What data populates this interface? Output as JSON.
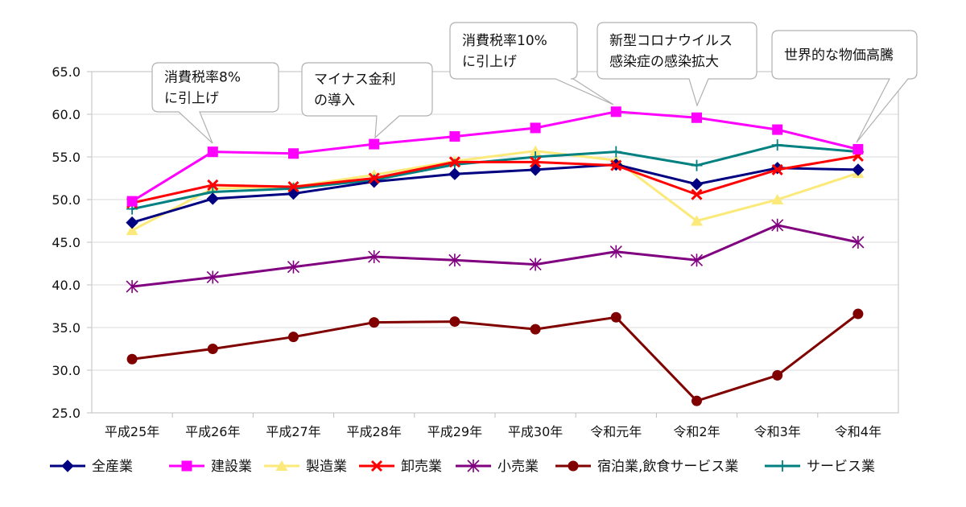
{
  "chart_data": {
    "type": "line",
    "title": "",
    "xlabel": "",
    "ylabel": "",
    "ylim": [
      25.0,
      65.0
    ],
    "ytick_step": 5,
    "grid": true,
    "legend_position": "bottom",
    "categories": [
      "平成25年",
      "平成26年",
      "平成27年",
      "平成28年",
      "平成29年",
      "平成30年",
      "令和元年",
      "令和2年",
      "令和3年",
      "令和4年"
    ],
    "series": [
      {
        "name": "全産業",
        "color": "#000080",
        "marker": "diamond",
        "values": [
          47.3,
          50.1,
          50.7,
          52.1,
          53.0,
          53.5,
          54.1,
          51.8,
          53.7,
          53.5
        ]
      },
      {
        "name": "建設業",
        "color": "#ff00ff",
        "marker": "square",
        "values": [
          49.8,
          55.6,
          55.4,
          56.5,
          57.4,
          58.4,
          60.3,
          59.6,
          58.2,
          55.9
        ]
      },
      {
        "name": "製造業",
        "color": "#fbe97a",
        "marker": "triangle",
        "values": [
          46.4,
          51.3,
          51.5,
          52.9,
          54.5,
          55.7,
          54.6,
          47.5,
          50.0,
          53.1
        ]
      },
      {
        "name": "卸売業",
        "color": "#ff0000",
        "marker": "x",
        "values": [
          49.6,
          51.7,
          51.5,
          52.5,
          54.4,
          54.4,
          54.0,
          50.6,
          53.5,
          55.1
        ]
      },
      {
        "name": "小売業",
        "color": "#800080",
        "marker": "star",
        "values": [
          39.8,
          40.9,
          42.1,
          43.3,
          42.9,
          42.4,
          43.9,
          42.9,
          47.0,
          45.0
        ]
      },
      {
        "name": "宿泊業,飲食サービス業",
        "color": "#800000",
        "marker": "circle",
        "values": [
          31.3,
          32.5,
          33.9,
          35.6,
          35.7,
          34.8,
          36.2,
          26.4,
          29.4,
          36.6
        ]
      },
      {
        "name": "サービス業",
        "color": "#008080",
        "marker": "plus",
        "values": [
          48.9,
          50.9,
          51.3,
          52.3,
          54.1,
          55.0,
          55.6,
          54.0,
          56.4,
          55.6
        ]
      }
    ],
    "annotations": [
      {
        "lines": [
          "消費税率8%",
          "に引上げ"
        ],
        "category": "平成26年",
        "value": 55.6
      },
      {
        "lines": [
          "マイナス金利",
          "の導入"
        ],
        "category": "平成28年",
        "value": 56.5
      },
      {
        "lines": [
          "消費税率10%",
          "に引上げ"
        ],
        "category": "令和元年",
        "value": 60.3
      },
      {
        "lines": [
          "新型コロナウイルス",
          "感染症の感染拡大"
        ],
        "category": "令和2年",
        "value": 59.6
      },
      {
        "lines": [
          "世界的な物価高騰"
        ],
        "category": "令和4年",
        "value": 55.9
      }
    ]
  }
}
